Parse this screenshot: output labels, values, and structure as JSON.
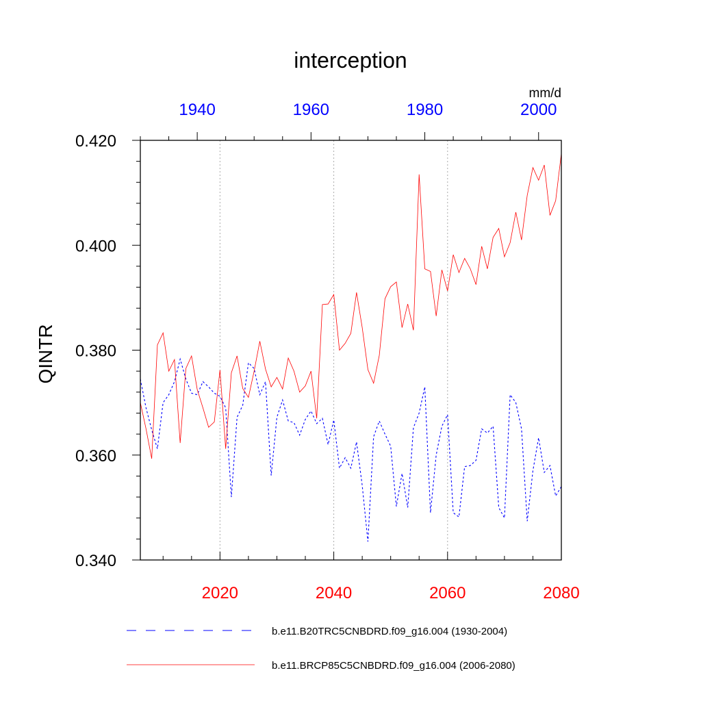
{
  "chart_data": {
    "type": "line",
    "title": "interception",
    "ylabel": "QINTR",
    "units": "mm/d",
    "ylim": [
      0.34,
      0.42
    ],
    "yticks": [
      "0.340",
      "0.360",
      "0.380",
      "0.400",
      "0.420"
    ],
    "grid": "vertical dotted lines at bottom-axis major ticks",
    "legend_position": "bottom",
    "bottom_axis": {
      "color": "#ff0000",
      "range": [
        2006,
        2080
      ],
      "ticks": [
        "2020",
        "2040",
        "2060",
        "2080"
      ]
    },
    "top_axis": {
      "color": "#0000ff",
      "range": [
        1930,
        2004
      ],
      "ticks": [
        "1940",
        "1960",
        "1980",
        "2000"
      ]
    },
    "series": [
      {
        "name": "b.e11.B20TRC5CNBDRD.f09_g16.004 (1930-2004)",
        "color": "#0000ff",
        "dash": "dashed",
        "axis": "top",
        "x_start": 1930,
        "values": [
          0.3745,
          0.369,
          0.3648,
          0.3612,
          0.37,
          0.3715,
          0.374,
          0.3783,
          0.3745,
          0.3718,
          0.3715,
          0.374,
          0.373,
          0.3718,
          0.3712,
          0.369,
          0.352,
          0.3672,
          0.3695,
          0.3776,
          0.3765,
          0.3715,
          0.374,
          0.3561,
          0.3672,
          0.3705,
          0.3665,
          0.3662,
          0.3638,
          0.3668,
          0.3684,
          0.366,
          0.367,
          0.362,
          0.3667,
          0.3575,
          0.3595,
          0.3575,
          0.3625,
          0.3542,
          0.3435,
          0.3635,
          0.3665,
          0.364,
          0.3617,
          0.3502,
          0.3565,
          0.35,
          0.3652,
          0.368,
          0.373,
          0.349,
          0.36,
          0.3655,
          0.3677,
          0.349,
          0.3482,
          0.3578,
          0.358,
          0.359,
          0.365,
          0.3642,
          0.3655,
          0.35,
          0.348,
          0.3715,
          0.37,
          0.365,
          0.3474,
          0.357,
          0.3633,
          0.3567,
          0.358,
          0.3522,
          0.354
        ]
      },
      {
        "name": "b.e11.BRCP85C5CNBDRD.f09_g16.004 (2006-2080)",
        "color": "#ff0000",
        "dash": "solid",
        "axis": "bottom",
        "x_start": 2006,
        "values": [
          0.37,
          0.365,
          0.3593,
          0.381,
          0.3833,
          0.376,
          0.3782,
          0.3623,
          0.3765,
          0.3789,
          0.3725,
          0.369,
          0.3653,
          0.3663,
          0.3762,
          0.3612,
          0.3757,
          0.3789,
          0.3727,
          0.371,
          0.376,
          0.3817,
          0.3764,
          0.373,
          0.3748,
          0.3726,
          0.3785,
          0.376,
          0.372,
          0.3732,
          0.376,
          0.367,
          0.3887,
          0.3888,
          0.3906,
          0.38,
          0.3813,
          0.3832,
          0.391,
          0.3843,
          0.3763,
          0.3737,
          0.379,
          0.3898,
          0.3921,
          0.393,
          0.3843,
          0.3888,
          0.3838,
          0.4135,
          0.3955,
          0.395,
          0.3865,
          0.3953,
          0.3913,
          0.3982,
          0.3948,
          0.3975,
          0.3955,
          0.3925,
          0.3998,
          0.3955,
          0.4015,
          0.4032,
          0.3978,
          0.4005,
          0.4063,
          0.401,
          0.4095,
          0.4148,
          0.4124,
          0.4153,
          0.4057,
          0.4085,
          0.4175
        ]
      }
    ]
  }
}
